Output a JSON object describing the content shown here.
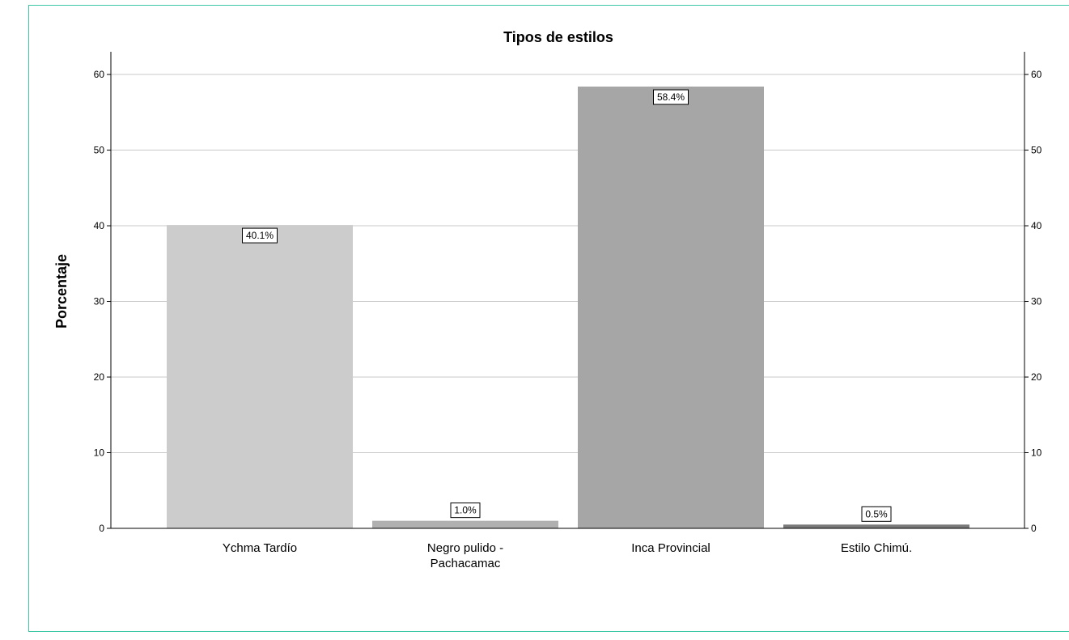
{
  "chart_data": {
    "type": "bar",
    "title": "Tipos de estilos",
    "ylabel": "Porcentaje",
    "xlabel": "",
    "ylim": [
      0,
      63
    ],
    "yticks": [
      0,
      10,
      20,
      30,
      40,
      50,
      60
    ],
    "right_axis": true,
    "grid": true,
    "categories": [
      [
        "Ychma Tardío"
      ],
      [
        "Negro pulido -",
        "Pachacamac"
      ],
      [
        "Inca Provincial"
      ],
      [
        "Estilo Chimú."
      ]
    ],
    "values": [
      40.1,
      1.0,
      58.4,
      0.5
    ],
    "data_labels": [
      "40.1%",
      "1.0%",
      "58.4%",
      "0.5%"
    ],
    "colors": [
      "#cccccc",
      "#b0b0b0",
      "#a6a6a6",
      "#7a7a7a"
    ],
    "frame_color": "#3cc7a5"
  }
}
